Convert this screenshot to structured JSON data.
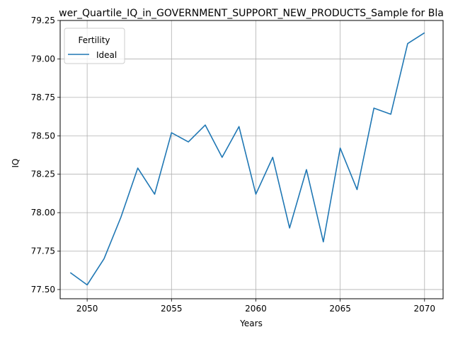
{
  "chart_data": {
    "type": "line",
    "title": "wer_Quartile_IQ_in_GOVERNMENT_SUPPORT_NEW_PRODUCTS_Sample for Bla",
    "xlabel": "Years",
    "ylabel": "IQ",
    "xlim": [
      2048.4,
      2071.1
    ],
    "ylim": [
      77.44,
      79.25
    ],
    "xticks": [
      2050,
      2055,
      2060,
      2065,
      2070
    ],
    "yticks": [
      77.5,
      77.75,
      78.0,
      78.25,
      78.5,
      78.75,
      79.0,
      79.25
    ],
    "xtick_labels": [
      "2050",
      "2055",
      "2060",
      "2065",
      "2070"
    ],
    "ytick_labels": [
      "77.50",
      "77.75",
      "78.00",
      "78.25",
      "78.50",
      "78.75",
      "79.00",
      "79.25"
    ],
    "grid": true,
    "legend": {
      "title": "Fertility",
      "placement": "top-left"
    },
    "series": [
      {
        "name": "Ideal",
        "color": "#1f77b4",
        "x": [
          2049,
          2050,
          2051,
          2052,
          2053,
          2054,
          2055,
          2056,
          2057,
          2058,
          2059,
          2060,
          2061,
          2062,
          2063,
          2064,
          2065,
          2066,
          2067,
          2068,
          2069,
          2070
        ],
        "y": [
          77.61,
          77.53,
          77.7,
          77.97,
          78.29,
          78.12,
          78.52,
          78.46,
          78.57,
          78.36,
          78.56,
          78.12,
          78.36,
          77.9,
          78.28,
          77.81,
          78.42,
          78.15,
          78.68,
          78.64,
          79.1,
          79.17
        ]
      }
    ]
  }
}
